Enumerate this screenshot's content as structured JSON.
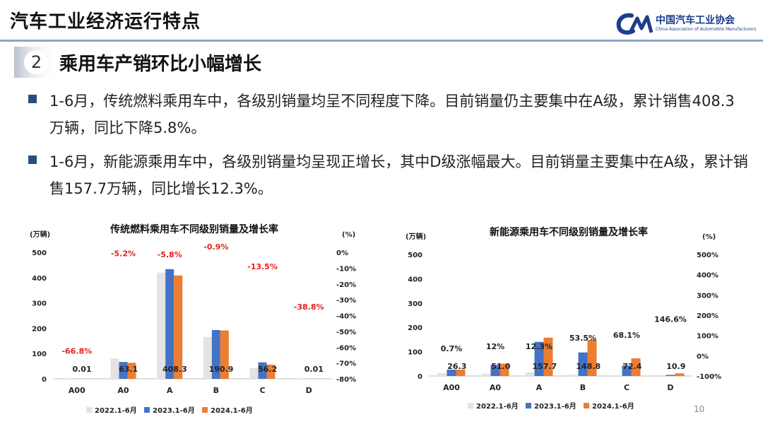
{
  "header": {
    "title": "汽车工业经济运行特点",
    "logo_cn": "中国汽车工业协会",
    "logo_en": "China Association of Automobile Manufacturers"
  },
  "section": {
    "number": "2",
    "title": "乘用车产销环比小幅增长"
  },
  "bullets": [
    "1-6月，传统燃料乘用车中，各级别销量均呈不同程度下降。目前销量仍主要集中在A级，累计销售408.3万辆，同比下降5.8%。",
    "1-6月，新能源乘用车中，各级别销量均呈现正增长，其中D级涨幅最大。目前销量主要集中在A级，累计销售157.7万辆，同比增长12.3%。"
  ],
  "page_number": "10",
  "colors": {
    "s2022": "#e3e3e3",
    "s2023": "#4472c4",
    "s2024": "#ed7d31",
    "negative_label": "#e02020",
    "bullet": "#2b4d7e",
    "header_rule": "#8aa6c9"
  },
  "chart_data": [
    {
      "type": "bar",
      "title": "传统燃料乘用车不同级别销量及增长率",
      "ylabel": "(万辆)",
      "y2label": "(%)",
      "categories": [
        "A00",
        "A0",
        "A",
        "B",
        "C",
        "D"
      ],
      "ylim": [
        0,
        500
      ],
      "yticks": [
        0,
        100,
        200,
        300,
        400,
        500
      ],
      "y2lim": [
        -80,
        0
      ],
      "y2ticks": [
        "0%",
        "-10%",
        "-20%",
        "-30%",
        "-40%",
        "-50%",
        "-60%",
        "-70%",
        "-80%"
      ],
      "series": [
        {
          "name": "2022.1-6月",
          "values": [
            0.5,
            80,
            420,
            165,
            43,
            0.5
          ]
        },
        {
          "name": "2023.1-6月",
          "values": [
            0.03,
            66.6,
            433.5,
            192.7,
            65,
            0.02
          ]
        },
        {
          "name": "2024.1-6月",
          "values": [
            0.01,
            63.1,
            408.3,
            190.9,
            56.2,
            0.01
          ]
        }
      ],
      "value_labels": [
        "0.01",
        "63.1",
        "408.3",
        "190.9",
        "56.2",
        "0.01"
      ],
      "growth_labels": [
        "-66.8%",
        "-5.2%",
        "-5.8%",
        "-0.9%",
        "-13.5%",
        "-38.8%"
      ],
      "growth_values": [
        -66.8,
        -5.2,
        -5.8,
        -0.9,
        -13.5,
        -38.8
      ],
      "legend": "bottom"
    },
    {
      "type": "bar",
      "title": "新能源乘用车不同级别销量及增长率",
      "ylabel": "(万辆)",
      "y2label": "(%)",
      "categories": [
        "A00",
        "A0",
        "A",
        "B",
        "C",
        "D"
      ],
      "ylim": [
        0,
        500
      ],
      "yticks": [
        0,
        100,
        200,
        300,
        400,
        500
      ],
      "y2lim": [
        -100,
        500
      ],
      "y2ticks": [
        "500%",
        "400%",
        "300%",
        "200%",
        "100%",
        "0%",
        "-100%"
      ],
      "series": [
        {
          "name": "2022.1-6月",
          "values": [
            12,
            9,
            15,
            5,
            3,
            0
          ]
        },
        {
          "name": "2023.1-6月",
          "values": [
            26.1,
            45.5,
            140.4,
            96.9,
            43.1,
            4.4
          ]
        },
        {
          "name": "2024.1-6月",
          "values": [
            26.3,
            51.0,
            157.7,
            148.8,
            72.4,
            10.9
          ]
        }
      ],
      "value_labels": [
        "26.3",
        "51.0",
        "157.7",
        "148.8",
        "72.4",
        "10.9"
      ],
      "growth_labels": [
        "0.7%",
        "12%",
        "12.3%",
        "53.5%",
        "68.1%",
        "146.6%"
      ],
      "growth_values": [
        0.7,
        12,
        12.3,
        53.5,
        68.1,
        146.6
      ],
      "legend": "bottom"
    }
  ]
}
